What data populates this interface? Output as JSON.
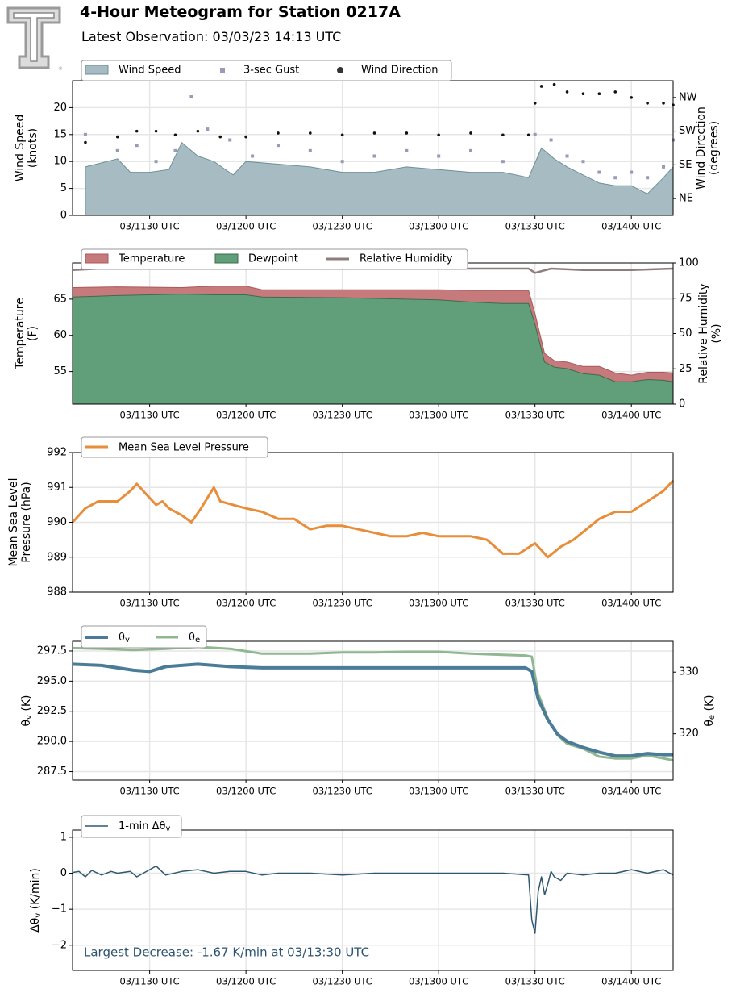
{
  "header": {
    "title": "4-Hour Meteogram for Station 0217A",
    "subtitle": "Latest Observation: 03/03/23 14:13 UTC",
    "logo_icon": "texas-tech-double-t-logo-icon"
  },
  "colors": {
    "wind_fill": "#a6bcc2",
    "wind_line": "#6f8f98",
    "gust": "#9999b8",
    "direction": "#111111",
    "temperature": "#c67a7c",
    "temperature_line": "#a85a5c",
    "dewpoint": "#609f7a",
    "dewpoint_line": "#3f6b4e",
    "humidity": "#8f7c7c",
    "pressure": "#e88e3a",
    "theta_v": "#4a7c98",
    "theta_e": "#8fb890",
    "dtheta": "#2e5870",
    "annotation": "#2d5470",
    "grid": "#e6e6e6"
  },
  "time_ticks": [
    "03/1130 UTC",
    "03/1200 UTC",
    "03/1230 UTC",
    "03/1300 UTC",
    "03/1330 UTC",
    "03/1400 UTC"
  ],
  "chart_data": [
    {
      "type": "area",
      "id": "wind",
      "ylabel": "Wind Speed\n(knots)",
      "y2label": "Wind Direction\n(degrees)",
      "ylim": [
        0,
        25
      ],
      "y_ticks": [
        "0",
        "5",
        "10",
        "15",
        "20"
      ],
      "y2_ticks": [
        "NE",
        "SE",
        "SW",
        "NW"
      ],
      "legend": [
        "Wind Speed",
        "3-sec Gust",
        "Wind Direction"
      ],
      "legend_placement": "top-left",
      "series": [
        {
          "name": "Wind Speed",
          "x": [
            "11:10",
            "11:20",
            "11:24",
            "11:30",
            "11:36",
            "11:40",
            "11:45",
            "11:50",
            "11:56",
            "12:00",
            "12:10",
            "12:20",
            "12:30",
            "12:40",
            "12:50",
            "13:00",
            "13:10",
            "13:20",
            "13:28",
            "13:32",
            "13:36",
            "13:40",
            "13:45",
            "13:50",
            "13:55",
            "14:00",
            "14:05",
            "14:10",
            "14:13"
          ],
          "values": [
            9,
            10.5,
            8,
            8,
            8.5,
            13.5,
            11,
            10,
            7.5,
            10,
            9.5,
            9,
            8,
            8,
            9,
            8.5,
            8,
            8,
            7,
            12.5,
            10.5,
            9,
            7.5,
            6,
            5.5,
            5.5,
            4,
            7,
            9
          ]
        },
        {
          "name": "3-sec Gust",
          "x": [
            "11:10",
            "11:20",
            "11:26",
            "11:32",
            "11:38",
            "11:43",
            "11:48",
            "11:55",
            "12:02",
            "12:10",
            "12:20",
            "12:30",
            "12:40",
            "12:50",
            "13:00",
            "13:10",
            "13:20",
            "13:30",
            "13:35",
            "13:40",
            "13:45",
            "13:50",
            "13:55",
            "14:00",
            "14:05",
            "14:10",
            "14:13"
          ],
          "values": [
            15,
            12,
            13,
            10,
            12,
            22,
            16,
            14,
            11,
            13,
            12,
            10,
            11,
            12,
            11,
            12,
            10,
            15,
            14,
            11,
            10,
            8,
            7,
            8,
            7,
            9,
            14
          ]
        },
        {
          "name": "Wind Direction",
          "y2_range": [
            0,
            360
          ],
          "x": [
            "11:10",
            "11:20",
            "11:26",
            "11:32",
            "11:38",
            "11:45",
            "11:52",
            "12:00",
            "12:10",
            "12:20",
            "12:30",
            "12:40",
            "12:50",
            "13:00",
            "13:10",
            "13:20",
            "13:28",
            "13:30",
            "13:32",
            "13:36",
            "13:40",
            "13:45",
            "13:50",
            "13:55",
            "14:00",
            "14:05",
            "14:10",
            "14:13"
          ],
          "values": [
            195,
            210,
            225,
            225,
            215,
            225,
            210,
            210,
            220,
            220,
            215,
            220,
            220,
            215,
            220,
            215,
            215,
            300,
            345,
            350,
            330,
            325,
            325,
            330,
            315,
            300,
            300,
            295
          ]
        }
      ]
    },
    {
      "type": "area",
      "id": "thermo",
      "ylabel": "Temperature\n(F)",
      "y2label": "Relative Humidity\n(%)",
      "ylim": [
        50.5,
        70
      ],
      "y_ticks": [
        "55",
        "60",
        "65"
      ],
      "y2_ticks": [
        "0",
        "25",
        "50",
        "75",
        "100"
      ],
      "legend": [
        "Temperature",
        "Dewpoint",
        "Relative Humidity"
      ],
      "legend_placement": "top-left",
      "series": [
        {
          "name": "Temperature",
          "x": [
            "11:06",
            "11:20",
            "11:40",
            "11:50",
            "12:00",
            "12:05",
            "12:30",
            "13:00",
            "13:10",
            "13:20",
            "13:28",
            "13:30",
            "13:33",
            "13:36",
            "13:40",
            "13:45",
            "13:50",
            "13:55",
            "14:00",
            "14:05",
            "14:10",
            "14:13"
          ],
          "values": [
            66.6,
            66.7,
            66.6,
            66.8,
            66.8,
            66.3,
            66.3,
            66.3,
            66.2,
            66.2,
            66.2,
            63,
            57.5,
            56.5,
            56.3,
            55.7,
            55.7,
            54.8,
            54.5,
            54.9,
            54.9,
            54.8
          ]
        },
        {
          "name": "Dewpoint",
          "x": [
            "11:06",
            "11:20",
            "11:40",
            "11:50",
            "12:00",
            "12:05",
            "12:30",
            "13:00",
            "13:10",
            "13:20",
            "13:28",
            "13:30",
            "13:33",
            "13:36",
            "13:40",
            "13:45",
            "13:50",
            "13:55",
            "14:00",
            "14:05",
            "14:10",
            "14:13"
          ],
          "values": [
            65.3,
            65.5,
            65.7,
            65.6,
            65.6,
            65.3,
            65.2,
            64.9,
            64.6,
            64.4,
            64.4,
            61.5,
            56.3,
            55.6,
            55.4,
            54.7,
            54.5,
            53.6,
            53.6,
            53.9,
            53.8,
            53.6
          ]
        },
        {
          "name": "Relative Humidity",
          "y2_range": [
            0,
            100
          ],
          "x": [
            "11:06",
            "11:15",
            "11:30",
            "11:45",
            "12:00",
            "12:10",
            "12:30",
            "13:00",
            "13:20",
            "13:28",
            "13:30",
            "13:35",
            "13:45",
            "14:00",
            "14:13"
          ],
          "values": [
            95,
            96,
            98,
            99,
            98,
            96,
            96,
            96,
            96,
            96,
            93,
            96,
            95,
            95,
            96
          ]
        }
      ]
    },
    {
      "type": "line",
      "id": "pressure",
      "ylabel": "Mean Sea Level\nPressure (hPa)",
      "ylim": [
        988,
        992
      ],
      "y_ticks": [
        "988",
        "989",
        "990",
        "991",
        "992"
      ],
      "legend": [
        "Mean Sea Level Pressure"
      ],
      "legend_placement": "top-left",
      "series": [
        {
          "name": "Mean Sea Level Pressure",
          "x": [
            "11:06",
            "11:10",
            "11:14",
            "11:20",
            "11:24",
            "11:26",
            "11:29",
            "11:32",
            "11:34",
            "11:36",
            "11:40",
            "11:43",
            "11:46",
            "11:48",
            "11:50",
            "11:52",
            "11:56",
            "12:00",
            "12:05",
            "12:10",
            "12:15",
            "12:20",
            "12:25",
            "12:30",
            "12:35",
            "12:40",
            "12:45",
            "12:50",
            "12:55",
            "13:00",
            "13:05",
            "13:10",
            "13:15",
            "13:20",
            "13:25",
            "13:30",
            "13:32",
            "13:34",
            "13:38",
            "13:42",
            "13:46",
            "13:50",
            "13:55",
            "14:00",
            "14:05",
            "14:10",
            "14:13"
          ],
          "values": [
            990,
            990.4,
            990.6,
            990.6,
            990.9,
            991.1,
            990.8,
            990.5,
            990.6,
            990.4,
            990.2,
            990,
            990.4,
            990.7,
            991,
            990.6,
            990.5,
            990.4,
            990.3,
            990.1,
            990.1,
            989.8,
            989.9,
            989.9,
            989.8,
            989.7,
            989.6,
            989.6,
            989.7,
            989.6,
            989.6,
            989.6,
            989.5,
            989.1,
            989.1,
            989.4,
            989.2,
            989,
            989.3,
            989.5,
            989.8,
            990.1,
            990.3,
            990.3,
            990.6,
            990.9,
            991.2
          ]
        }
      ]
    },
    {
      "type": "line",
      "id": "theta",
      "ylabel": "θv (K)",
      "y2label": "θe (K)",
      "ylim": [
        286.8,
        298.3
      ],
      "y_ticks": [
        "287.5",
        "290.0",
        "292.5",
        "295.0",
        "297.5"
      ],
      "y2_ticks": [
        "320",
        "330"
      ],
      "legend": [
        "θv",
        "θe"
      ],
      "legend_placement": "top-left",
      "series": [
        {
          "name": "θv",
          "x": [
            "11:06",
            "11:15",
            "11:25",
            "11:30",
            "11:35",
            "11:45",
            "11:55",
            "12:05",
            "12:20",
            "12:30",
            "12:40",
            "12:50",
            "13:00",
            "13:10",
            "13:20",
            "13:27",
            "13:29",
            "13:31",
            "13:34",
            "13:37",
            "13:40",
            "13:45",
            "13:50",
            "13:55",
            "14:00",
            "14:05",
            "14:10",
            "14:13"
          ],
          "values": [
            296.4,
            296.3,
            295.9,
            295.8,
            296.2,
            296.4,
            296.2,
            296.1,
            296.1,
            296.1,
            296.1,
            296.1,
            296.1,
            296.1,
            296.1,
            296.1,
            295.8,
            293.5,
            291.8,
            290.6,
            290,
            289.5,
            289.1,
            288.8,
            288.8,
            289,
            288.9,
            288.9
          ]
        },
        {
          "name": "θe",
          "y2_range": [
            312.5,
            335
          ],
          "x": [
            "11:06",
            "11:15",
            "11:25",
            "11:35",
            "11:45",
            "11:55",
            "12:05",
            "12:20",
            "12:30",
            "12:40",
            "12:50",
            "13:00",
            "13:10",
            "13:20",
            "13:27",
            "13:29",
            "13:31",
            "13:34",
            "13:37",
            "13:40",
            "13:45",
            "13:50",
            "13:55",
            "14:00",
            "14:05",
            "14:10",
            "14:13"
          ],
          "values": [
            333.9,
            333.8,
            333.6,
            333.8,
            334.1,
            333.8,
            333,
            333,
            333.2,
            333.2,
            333.3,
            333.3,
            333,
            332.8,
            332.7,
            332.5,
            326.5,
            322.5,
            319.8,
            318.4,
            317.6,
            316.3,
            316,
            316,
            316.5,
            316,
            315.7
          ]
        }
      ]
    },
    {
      "type": "line",
      "id": "dtheta",
      "ylabel": "Δθv (K/min)",
      "ylim": [
        -2.7,
        1.2
      ],
      "y_ticks": [
        "−2",
        "−1",
        "0",
        "1"
      ],
      "legend": [
        "1-min Δθv"
      ],
      "legend_placement": "top-left",
      "annotation": "Largest Decrease: -1.67 K/min at 03/13:30 UTC",
      "series": [
        {
          "name": "1-min Δθv",
          "x": [
            "11:06",
            "11:08",
            "11:10",
            "11:12",
            "11:15",
            "11:18",
            "11:20",
            "11:24",
            "11:26",
            "11:30",
            "11:32",
            "11:35",
            "11:40",
            "11:45",
            "11:50",
            "11:55",
            "12:00",
            "12:05",
            "12:10",
            "12:20",
            "12:30",
            "12:40",
            "12:50",
            "13:00",
            "13:10",
            "13:20",
            "13:28",
            "13:29",
            "13:30",
            "13:31",
            "13:32",
            "13:33",
            "13:34",
            "13:35",
            "13:36",
            "13:38",
            "13:40",
            "13:45",
            "13:50",
            "13:55",
            "14:00",
            "14:05",
            "14:10",
            "14:13"
          ],
          "values": [
            0.02,
            0.05,
            -0.1,
            0.08,
            -0.05,
            0.05,
            0,
            0.05,
            -0.1,
            0.1,
            0.2,
            -0.05,
            0.05,
            0.1,
            0,
            0.05,
            0.05,
            -0.05,
            0,
            0,
            -0.05,
            0,
            0,
            0,
            0,
            0,
            -0.05,
            -1.3,
            -1.67,
            -0.5,
            -0.1,
            -0.6,
            -0.3,
            0.05,
            -0.1,
            -0.2,
            0,
            -0.05,
            0,
            0,
            0.1,
            0,
            0.1,
            -0.05
          ]
        }
      ]
    }
  ]
}
